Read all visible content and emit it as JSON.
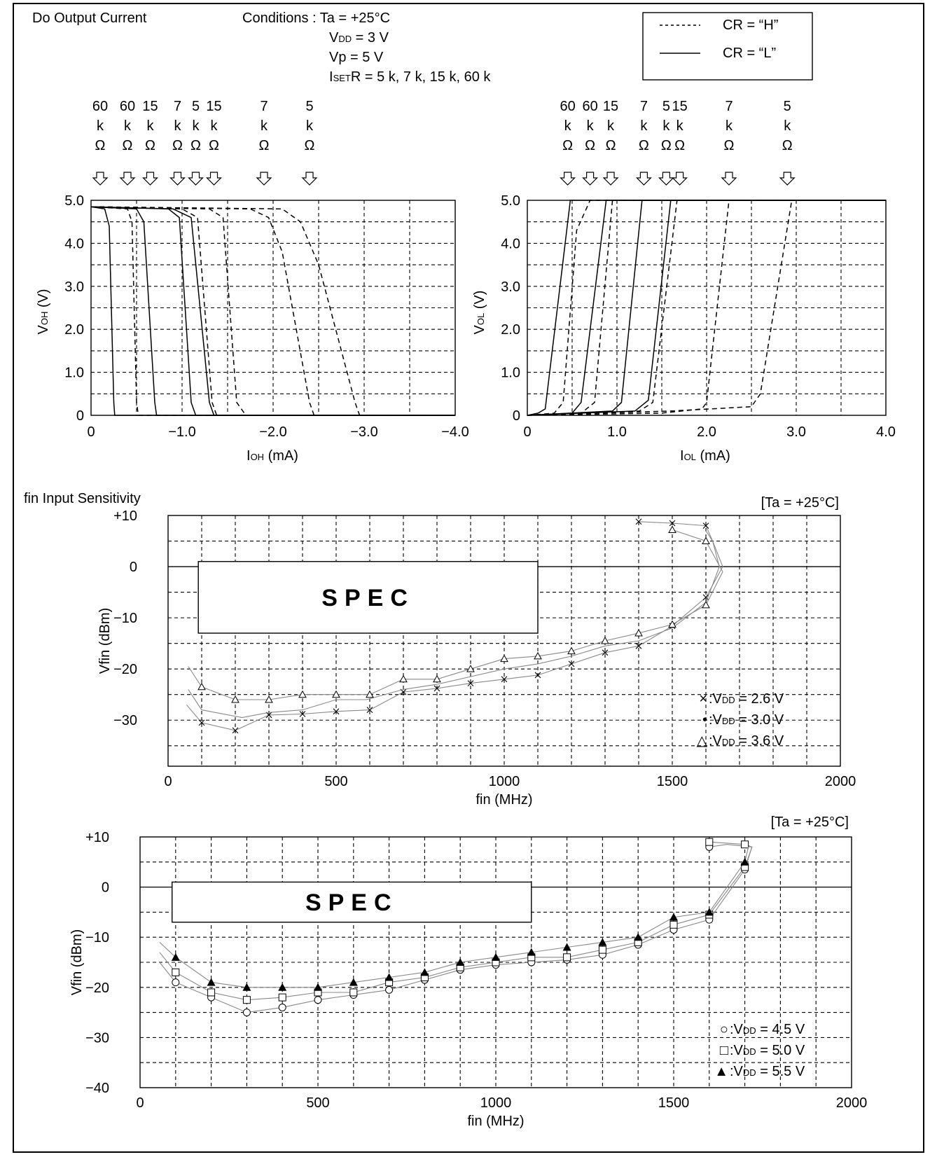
{
  "header": {
    "title": "Do Output Current",
    "conditions": [
      {
        "main": "Conditions : Ta = +25°C",
        "sub": "",
        "rest": ""
      },
      {
        "main": "V",
        "sub": "DD",
        "rest": " = 3 V"
      },
      {
        "main": "Vp = 5 V",
        "sub": "",
        "rest": ""
      },
      {
        "main": "I",
        "sub": "SET",
        "rest": "R = 5 k, 7 k, 15 k, 60 k"
      }
    ],
    "legend": [
      {
        "style": "dashed",
        "label": "CR = “H”"
      },
      {
        "style": "solid",
        "label": "CR = “L”"
      }
    ]
  },
  "chart_data": [
    {
      "type": "line",
      "title": "",
      "xlabel": {
        "main": "I",
        "sub": "OH",
        "rest": " (mA)"
      },
      "ylabel": {
        "main": "V",
        "sub": "OH",
        "rest": " (V)"
      },
      "xlim": [
        0,
        -4.0
      ],
      "ylim": [
        0,
        5.0
      ],
      "x_ticks": [
        "0",
        "−1.0",
        "−2.0",
        "−3.0",
        "−4.0"
      ],
      "y_ticks": [
        "0",
        "1.0",
        "2.0",
        "3.0",
        "4.0",
        "5.0"
      ],
      "grid": true,
      "resistor_labels": [
        {
          "x": -0.1,
          "value": "60"
        },
        {
          "x": -0.4,
          "value": "60"
        },
        {
          "x": -0.65,
          "value": "15"
        },
        {
          "x": -0.95,
          "value": "7"
        },
        {
          "x": -1.15,
          "value": "5"
        },
        {
          "x": -1.35,
          "value": "15"
        },
        {
          "x": -1.9,
          "value": "7"
        },
        {
          "x": -2.4,
          "value": "5"
        }
      ],
      "series": [
        {
          "style": "solid",
          "x": [
            0,
            -0.15,
            -0.2,
            -0.25,
            -0.26,
            -4.0
          ],
          "y": [
            4.85,
            4.8,
            4.4,
            0.3,
            0,
            0
          ]
        },
        {
          "style": "dashed",
          "x": [
            0,
            -0.4,
            -0.45,
            -0.5,
            -0.52,
            -4.0
          ],
          "y": [
            4.85,
            4.8,
            4.5,
            0.3,
            0,
            0
          ]
        },
        {
          "style": "solid",
          "x": [
            0,
            -0.5,
            -0.58,
            -0.7,
            -0.72,
            -4.0
          ],
          "y": [
            4.85,
            4.8,
            4.5,
            0.3,
            0,
            0
          ]
        },
        {
          "style": "solid",
          "x": [
            0,
            -0.85,
            -0.97,
            -1.1,
            -1.15,
            -4.0
          ],
          "y": [
            4.85,
            4.8,
            4.6,
            0.3,
            0,
            0
          ]
        },
        {
          "style": "solid",
          "x": [
            0,
            -0.9,
            -1.1,
            -1.3,
            -1.35,
            -4.0
          ],
          "y": [
            4.85,
            4.8,
            4.6,
            0.3,
            0,
            0
          ]
        },
        {
          "style": "dashed",
          "x": [
            0,
            -1.0,
            -1.17,
            -1.33,
            -1.38,
            -4.0
          ],
          "y": [
            4.85,
            4.8,
            4.6,
            0.3,
            0,
            0
          ]
        },
        {
          "style": "dashed",
          "x": [
            0,
            -1.3,
            -1.45,
            -1.6,
            -1.7,
            -4.0
          ],
          "y": [
            4.85,
            4.8,
            4.6,
            0.3,
            0,
            0
          ]
        },
        {
          "style": "dashed",
          "x": [
            0,
            -1.75,
            -1.95,
            -2.1,
            -2.4,
            -2.45,
            -4.0
          ],
          "y": [
            4.85,
            4.8,
            4.6,
            3.8,
            0.3,
            0,
            0
          ]
        },
        {
          "style": "dashed",
          "x": [
            0,
            -2.1,
            -2.3,
            -2.5,
            -2.9,
            -2.95,
            -4.0
          ],
          "y": [
            4.85,
            4.8,
            4.5,
            3.5,
            0.3,
            0,
            0
          ]
        }
      ]
    },
    {
      "type": "line",
      "title": "",
      "xlabel": {
        "main": "I",
        "sub": "OL",
        "rest": " (mA)"
      },
      "ylabel": {
        "main": "V",
        "sub": "OL",
        "rest": " (V)"
      },
      "xlim": [
        0,
        4.0
      ],
      "ylim": [
        0,
        5.0
      ],
      "x_ticks": [
        "0",
        "1.0",
        "2.0",
        "3.0",
        "4.0"
      ],
      "y_ticks": [
        "0",
        "1.0",
        "2.0",
        "3.0",
        "4.0",
        "5.0"
      ],
      "grid": true,
      "resistor_labels": [
        {
          "x": 0.45,
          "value": "60"
        },
        {
          "x": 0.7,
          "value": "60"
        },
        {
          "x": 0.93,
          "value": "15"
        },
        {
          "x": 1.3,
          "value": "7"
        },
        {
          "x": 1.55,
          "value": "5"
        },
        {
          "x": 1.7,
          "value": "15"
        },
        {
          "x": 2.25,
          "value": "7"
        },
        {
          "x": 2.9,
          "value": "5"
        }
      ],
      "series": [
        {
          "style": "solid",
          "x": [
            0,
            0.12,
            0.2,
            0.48,
            4.0
          ],
          "y": [
            0,
            0.05,
            0.15,
            5.0,
            5.0
          ]
        },
        {
          "style": "dashed",
          "x": [
            0,
            0.3,
            0.4,
            0.55,
            0.7,
            4.0
          ],
          "y": [
            0,
            0.05,
            0.3,
            4.3,
            5.0,
            5.0
          ]
        },
        {
          "style": "solid",
          "x": [
            0,
            0.5,
            0.6,
            0.88,
            4.0
          ],
          "y": [
            0,
            0.05,
            0.3,
            5.0,
            5.0
          ]
        },
        {
          "style": "dashed",
          "x": [
            0,
            0.6,
            0.75,
            0.95,
            4.0
          ],
          "y": [
            0,
            0.05,
            0.3,
            5.0,
            5.0
          ]
        },
        {
          "style": "solid",
          "x": [
            0,
            0.95,
            1.05,
            1.28,
            4.0
          ],
          "y": [
            0,
            0.1,
            0.3,
            5.0,
            5.0
          ]
        },
        {
          "style": "solid",
          "x": [
            0,
            1.2,
            1.35,
            1.6,
            4.0
          ],
          "y": [
            0,
            0.1,
            0.35,
            5.0,
            5.0
          ]
        },
        {
          "style": "dashed",
          "x": [
            0,
            1.25,
            1.4,
            1.67,
            4.0
          ],
          "y": [
            0,
            0.1,
            0.3,
            5.0,
            5.0
          ]
        },
        {
          "style": "dashed",
          "x": [
            0,
            1.5,
            1.95,
            2.0,
            2.25,
            4.0
          ],
          "y": [
            0,
            0.05,
            0.15,
            0.3,
            5.0,
            5.0
          ]
        },
        {
          "style": "dashed",
          "x": [
            0,
            1.6,
            2.5,
            2.6,
            2.95,
            4.0
          ],
          "y": [
            0,
            0.1,
            0.2,
            0.5,
            5.0,
            5.0
          ]
        }
      ]
    },
    {
      "type": "line",
      "section_title": "fin Input Sensitivity",
      "corner_note": "[Ta = +25°C]",
      "xlabel": "fin (MHz)",
      "ylabel": "Vfin (dBm)",
      "xlim": [
        0,
        2000
      ],
      "ylim": [
        -40,
        10
      ],
      "x_ticks": [
        "0",
        "500",
        "1000",
        "1500",
        "2000"
      ],
      "y_ticks": [
        {
          "v": 10,
          "t": "+10"
        },
        {
          "v": 0,
          "t": "0"
        },
        {
          "v": -10,
          "t": "−10"
        },
        {
          "v": -20,
          "t": "−20"
        },
        {
          "v": -30,
          "t": "−30"
        }
      ],
      "spec_box": {
        "label": "SPEC",
        "x1": 90,
        "x2": 1100,
        "y_top": 1,
        "y_bottom": -13
      },
      "legend": [
        {
          "marker": "×",
          "main": ":V",
          "sub": "DD",
          "rest": " =  2.6 V"
        },
        {
          "marker": "•",
          "main": ":V",
          "sub": "DD",
          "rest": " =  3.0 V"
        },
        {
          "marker": "△",
          "main": ":V",
          "sub": "DD",
          "rest": " =  3.6 V"
        }
      ],
      "series": [
        {
          "name": "VDD = 2.6 V",
          "marker": "x",
          "x": [
            55,
            100,
            200,
            300,
            400,
            500,
            600,
            700,
            800,
            900,
            1000,
            1100,
            1200,
            1300,
            1400,
            1500,
            1600,
            1650,
            1620,
            1600,
            1500,
            1400
          ],
          "y": [
            -27,
            -30.5,
            -32,
            -29,
            -28.8,
            -28.3,
            -28,
            -24.5,
            -23.8,
            -22.8,
            -22,
            -21.2,
            -19,
            -16.8,
            -15.5,
            -11.6,
            -6,
            0,
            5,
            8,
            8.5,
            8.8
          ]
        },
        {
          "name": "VDD = 3.0 V",
          "marker": "dot",
          "x": [
            60,
            100,
            220,
            300,
            400,
            500,
            590,
            700,
            800,
            900,
            1000,
            1100,
            1200,
            1300,
            1400,
            1500,
            1600,
            1640,
            1620,
            1600
          ],
          "y": [
            -24,
            -28,
            -29.5,
            -28.5,
            -28,
            -26,
            -26,
            -24,
            -23,
            -21.5,
            -20,
            -19,
            -17.5,
            -15.5,
            -14.5,
            -12,
            -7,
            0,
            5,
            7
          ]
        },
        {
          "name": "VDD = 3.6 V",
          "marker": "triangle",
          "x": [
            60,
            100,
            200,
            300,
            400,
            500,
            600,
            700,
            800,
            900,
            1000,
            1100,
            1200,
            1300,
            1400,
            1500,
            1600,
            1650,
            1600,
            1500
          ],
          "y": [
            -19.5,
            -23.5,
            -26,
            -26,
            -25,
            -25,
            -25,
            -22,
            -22,
            -20,
            -18,
            -17.5,
            -16.5,
            -14.5,
            -13,
            -11.3,
            -7.5,
            -1,
            5,
            7.2
          ]
        }
      ]
    },
    {
      "type": "line",
      "corner_note": "[Ta = +25°C]",
      "xlabel": "fin (MHz)",
      "ylabel": "Vfin (dBm)",
      "xlim": [
        0,
        2000
      ],
      "ylim": [
        -40,
        10
      ],
      "x_ticks": [
        "0",
        "500",
        "1000",
        "1500",
        "2000"
      ],
      "y_ticks": [
        {
          "v": 10,
          "t": "+10"
        },
        {
          "v": 0,
          "t": "0"
        },
        {
          "v": -10,
          "t": "−10"
        },
        {
          "v": -20,
          "t": "−20"
        },
        {
          "v": -30,
          "t": "−30"
        },
        {
          "v": -40,
          "t": "−40"
        }
      ],
      "spec_box": {
        "label": "SPEC",
        "x1": 90,
        "x2": 1100,
        "y_top": 1,
        "y_bottom": -7
      },
      "legend": [
        {
          "marker": "○",
          "main": ":V",
          "sub": "DD",
          "rest": " =  4.5 V"
        },
        {
          "marker": "□",
          "main": ":V",
          "sub": "DD",
          "rest": " =  5.0 V"
        },
        {
          "marker": "▲",
          "main": ":V",
          "sub": "DD",
          "rest": " =  5.5 V"
        }
      ],
      "series": [
        {
          "name": "VDD = 4.5 V",
          "marker": "circle",
          "x": [
            55,
            100,
            200,
            300,
            400,
            500,
            600,
            700,
            800,
            900,
            1000,
            1100,
            1200,
            1300,
            1400,
            1500,
            1600,
            1700,
            1720,
            1650,
            1600
          ],
          "y": [
            -15,
            -19,
            -22,
            -25,
            -24,
            -22.5,
            -21.5,
            -20.5,
            -18.5,
            -16.5,
            -15.5,
            -15,
            -14.5,
            -13.5,
            -11.5,
            -8.5,
            -6.5,
            3.5,
            8,
            8.5,
            8
          ]
        },
        {
          "name": "VDD = 5.0 V",
          "marker": "square",
          "x": [
            55,
            100,
            200,
            300,
            400,
            500,
            600,
            700,
            800,
            900,
            1000,
            1100,
            1200,
            1300,
            1400,
            1500,
            1600,
            1700,
            1720,
            1700,
            1600
          ],
          "y": [
            -13,
            -17,
            -21,
            -22.5,
            -22,
            -21,
            -21,
            -19,
            -18,
            -16,
            -15,
            -14,
            -14,
            -12.5,
            -11,
            -7.5,
            -5.5,
            4,
            8,
            8.5,
            9
          ]
        },
        {
          "name": "VDD = 5.5 V",
          "marker": "triangle-filled",
          "x": [
            55,
            100,
            200,
            300,
            400,
            500,
            600,
            700,
            800,
            900,
            1000,
            1100,
            1200,
            1300,
            1400,
            1500,
            1600,
            1700,
            1710
          ],
          "y": [
            -11,
            -14,
            -19,
            -20,
            -20,
            -20,
            -19,
            -18,
            -17,
            -15,
            -14,
            -13,
            -12,
            -11,
            -10,
            -6,
            -5,
            5,
            8
          ]
        }
      ]
    }
  ]
}
